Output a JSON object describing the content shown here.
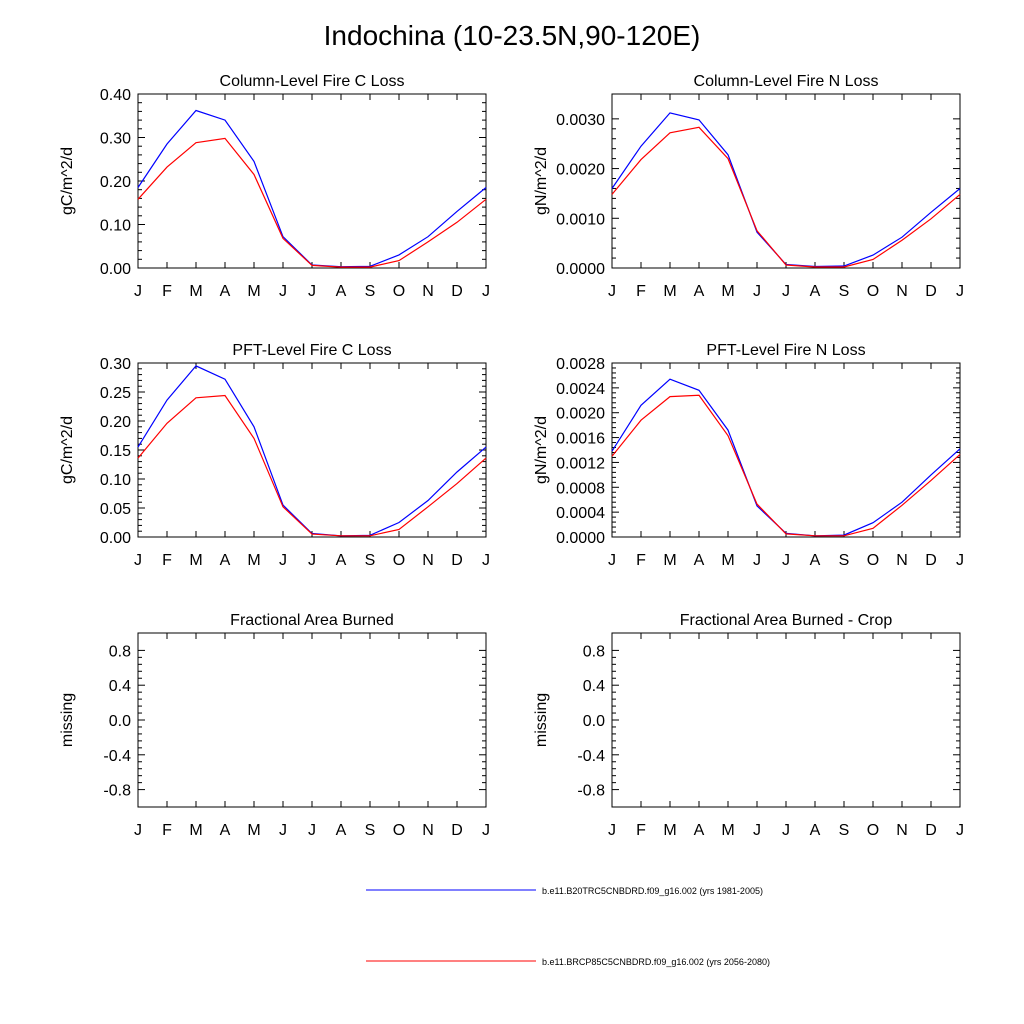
{
  "figure": {
    "title": "Indochina (10-23.5N,90-120E)",
    "month_labels": [
      "J",
      "F",
      "M",
      "A",
      "M",
      "J",
      "J",
      "A",
      "S",
      "O",
      "N",
      "D",
      "J"
    ]
  },
  "legend": [
    {
      "label": "b.e11.B20TRC5CNBDRD.f09_g16.002 (yrs 1981-2005)",
      "color": "#0000ff"
    },
    {
      "label": "b.e11.BRCP85C5CNBDRD.f09_g16.002 (yrs 2056-2080)",
      "color": "#ff0000"
    }
  ],
  "chart_data": [
    {
      "type": "line",
      "title": "Column-Level Fire C Loss",
      "ylabel": "gC/m^2/d",
      "xlabel": "",
      "ylim": [
        0,
        0.4
      ],
      "yticks": [
        0,
        0.1,
        0.2,
        0.3,
        0.4
      ],
      "ytick_labels": [
        "0.00",
        "0.10",
        "0.20",
        "0.30",
        "0.40"
      ],
      "series": [
        {
          "name": "b.e11.B20TRC5CNBDRD.f09_g16.002 (yrs 1981-2005)",
          "color": "#0000ff",
          "values": [
            0.185,
            0.285,
            0.362,
            0.34,
            0.245,
            0.072,
            0.007,
            0.003,
            0.004,
            0.03,
            0.072,
            0.13,
            0.185
          ]
        },
        {
          "name": "b.e11.BRCP85C5CNBDRD.f09_g16.002 (yrs 2056-2080)",
          "color": "#ff0000",
          "values": [
            0.158,
            0.232,
            0.288,
            0.298,
            0.215,
            0.068,
            0.006,
            0.002,
            0.002,
            0.017,
            0.06,
            0.105,
            0.158
          ]
        }
      ]
    },
    {
      "type": "line",
      "title": "Column-Level Fire N Loss",
      "ylabel": "gN/m^2/d",
      "xlabel": "",
      "ylim": [
        0,
        0.0035
      ],
      "yticks": [
        0,
        0.001,
        0.002,
        0.003
      ],
      "ytick_labels": [
        "0.0000",
        "0.0010",
        "0.0020",
        "0.0030"
      ],
      "series": [
        {
          "name": "b.e11.B20TRC5CNBDRD.f09_g16.002 (yrs 1981-2005)",
          "color": "#0000ff",
          "values": [
            0.0016,
            0.00245,
            0.00312,
            0.00298,
            0.00228,
            0.00072,
            7e-05,
            3e-05,
            4e-05,
            0.00026,
            0.00062,
            0.00112,
            0.0016
          ]
        },
        {
          "name": "b.e11.BRCP85C5CNBDRD.f09_g16.002 (yrs 2056-2080)",
          "color": "#ff0000",
          "values": [
            0.00148,
            0.00218,
            0.00272,
            0.00283,
            0.0022,
            0.00075,
            6e-05,
            2e-05,
            2e-05,
            0.00017,
            0.00056,
            0.00099,
            0.00148
          ]
        }
      ]
    },
    {
      "type": "line",
      "title": "PFT-Level Fire C Loss",
      "ylabel": "gC/m^2/d",
      "xlabel": "",
      "ylim": [
        0,
        0.3
      ],
      "yticks": [
        0,
        0.05,
        0.1,
        0.15,
        0.2,
        0.25,
        0.3
      ],
      "ytick_labels": [
        "0.00",
        "0.05",
        "0.10",
        "0.15",
        "0.20",
        "0.25",
        "0.30"
      ],
      "series": [
        {
          "name": "b.e11.B20TRC5CNBDRD.f09_g16.002 (yrs 1981-2005)",
          "color": "#0000ff",
          "values": [
            0.155,
            0.236,
            0.295,
            0.272,
            0.19,
            0.055,
            0.006,
            0.002,
            0.003,
            0.025,
            0.063,
            0.112,
            0.155
          ]
        },
        {
          "name": "b.e11.BRCP85C5CNBDRD.f09_g16.002 (yrs 2056-2080)",
          "color": "#ff0000",
          "values": [
            0.136,
            0.196,
            0.24,
            0.244,
            0.17,
            0.052,
            0.005,
            0.002,
            0.002,
            0.013,
            0.052,
            0.092,
            0.136
          ]
        }
      ]
    },
    {
      "type": "line",
      "title": "PFT-Level Fire N Loss",
      "ylabel": "gN/m^2/d",
      "xlabel": "",
      "ylim": [
        0,
        0.0028
      ],
      "yticks": [
        0,
        0.0004,
        0.0008,
        0.0012,
        0.0016,
        0.002,
        0.0024,
        0.0028
      ],
      "ytick_labels": [
        "0.0000",
        "0.0004",
        "0.0008",
        "0.0012",
        "0.0016",
        "0.0020",
        "0.0024",
        "0.0028"
      ],
      "series": [
        {
          "name": "b.e11.B20TRC5CNBDRD.f09_g16.002 (yrs 1981-2005)",
          "color": "#0000ff",
          "values": [
            0.00138,
            0.00212,
            0.00254,
            0.00236,
            0.00172,
            0.0005,
            6e-05,
            2e-05,
            3e-05,
            0.00023,
            0.00056,
            0.001,
            0.00142
          ]
        },
        {
          "name": "b.e11.BRCP85C5CNBDRD.f09_g16.002 (yrs 2056-2080)",
          "color": "#ff0000",
          "values": [
            0.0013,
            0.00188,
            0.00226,
            0.00228,
            0.00163,
            0.00053,
            5e-05,
            2e-05,
            2e-05,
            0.00014,
            0.00051,
            0.00091,
            0.00133
          ]
        }
      ]
    },
    {
      "type": "line",
      "title": "Fractional Area Burned",
      "ylabel": "missing",
      "xlabel": "",
      "ylim": [
        -1,
        1
      ],
      "yticks": [
        -0.8,
        -0.4,
        0,
        0.4,
        0.8
      ],
      "ytick_labels": [
        "-0.8",
        "-0.4",
        "0.0",
        "0.4",
        "0.8"
      ],
      "series": []
    },
    {
      "type": "line",
      "title": "Fractional Area Burned - Crop",
      "ylabel": "missing",
      "xlabel": "",
      "ylim": [
        -1,
        1
      ],
      "yticks": [
        -0.8,
        -0.4,
        0,
        0.4,
        0.8
      ],
      "ytick_labels": [
        "-0.8",
        "-0.4",
        "0.0",
        "0.4",
        "0.8"
      ],
      "series": []
    }
  ]
}
